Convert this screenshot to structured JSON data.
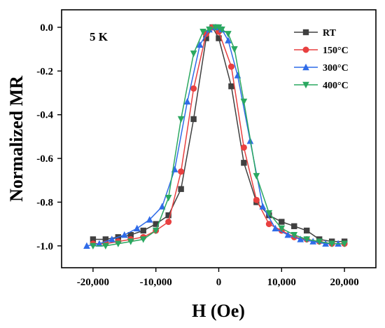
{
  "chart_data": {
    "type": "line",
    "title": "",
    "xlabel": "H (Oe)",
    "ylabel": "Normalized MR",
    "annotation": "5 K",
    "xlim": [
      -25000,
      25000
    ],
    "ylim": [
      -1.1,
      0.08
    ],
    "xticks": [
      -20000,
      -10000,
      0,
      10000,
      20000
    ],
    "xtick_labels": [
      "-20,000",
      "-10,000",
      "0",
      "10,000",
      "20,000"
    ],
    "yticks": [
      0.0,
      -0.2,
      -0.4,
      -0.6,
      -0.8,
      -1.0
    ],
    "ytick_labels": [
      "0.0",
      "-0.2",
      "-0.4",
      "-0.6",
      "-0.8",
      "-1.0"
    ],
    "grid": false,
    "legend_position": "top-right",
    "series": [
      {
        "name": "RT",
        "color": "#404040",
        "marker": "square",
        "x": [
          -20000,
          -18000,
          -16000,
          -14000,
          -12000,
          -10000,
          -8000,
          -6000,
          -4000,
          -2000,
          -1000,
          0,
          2000,
          4000,
          6000,
          8000,
          10000,
          12000,
          14000,
          16000,
          18000,
          20000
        ],
        "y": [
          -0.97,
          -0.97,
          -0.96,
          -0.95,
          -0.93,
          -0.9,
          -0.86,
          -0.74,
          -0.42,
          -0.05,
          0.0,
          -0.05,
          -0.27,
          -0.62,
          -0.8,
          -0.86,
          -0.89,
          -0.91,
          -0.93,
          -0.97,
          -0.98,
          -0.98
        ]
      },
      {
        "name": "150°C",
        "color": "#e84040",
        "marker": "circle",
        "x": [
          -20000,
          -18000,
          -16000,
          -14000,
          -12000,
          -10000,
          -8000,
          -6000,
          -4000,
          -2000,
          -1000,
          0,
          2000,
          4000,
          6000,
          8000,
          10000,
          12000,
          14000,
          16000,
          18000,
          20000
        ],
        "y": [
          -0.99,
          -0.99,
          -0.98,
          -0.97,
          -0.96,
          -0.93,
          -0.89,
          -0.66,
          -0.28,
          -0.03,
          0.0,
          -0.02,
          -0.18,
          -0.55,
          -0.79,
          -0.9,
          -0.93,
          -0.96,
          -0.97,
          -0.98,
          -0.99,
          -0.99
        ]
      },
      {
        "name": "300°C",
        "color": "#2f6be8",
        "marker": "triangle-up",
        "x": [
          -21000,
          -19000,
          -17000,
          -15000,
          -13000,
          -11000,
          -9000,
          -7000,
          -5000,
          -3000,
          -1500,
          -500,
          500,
          1500,
          3000,
          5000,
          7000,
          9000,
          11000,
          13000,
          15000,
          17000,
          19000
        ],
        "y": [
          -1.0,
          -0.99,
          -0.97,
          -0.95,
          -0.92,
          -0.88,
          -0.82,
          -0.65,
          -0.34,
          -0.08,
          -0.01,
          0.0,
          -0.01,
          -0.06,
          -0.22,
          -0.52,
          -0.82,
          -0.92,
          -0.95,
          -0.97,
          -0.98,
          -0.99,
          -0.99
        ]
      },
      {
        "name": "400°C",
        "color": "#2aa860",
        "marker": "triangle-down",
        "x": [
          -20000,
          -18000,
          -16000,
          -14000,
          -12000,
          -10000,
          -8000,
          -6000,
          -4000,
          -2500,
          -1500,
          -500,
          0,
          500,
          1500,
          2500,
          4000,
          6000,
          8000,
          10000,
          12000,
          14000,
          16000,
          18000,
          20000
        ],
        "y": [
          -1.0,
          -1.0,
          -0.99,
          -0.98,
          -0.97,
          -0.93,
          -0.78,
          -0.42,
          -0.12,
          -0.02,
          -0.01,
          0.0,
          0.0,
          -0.01,
          -0.03,
          -0.1,
          -0.34,
          -0.68,
          -0.85,
          -0.92,
          -0.95,
          -0.97,
          -0.98,
          -0.99,
          -0.99
        ]
      }
    ]
  }
}
